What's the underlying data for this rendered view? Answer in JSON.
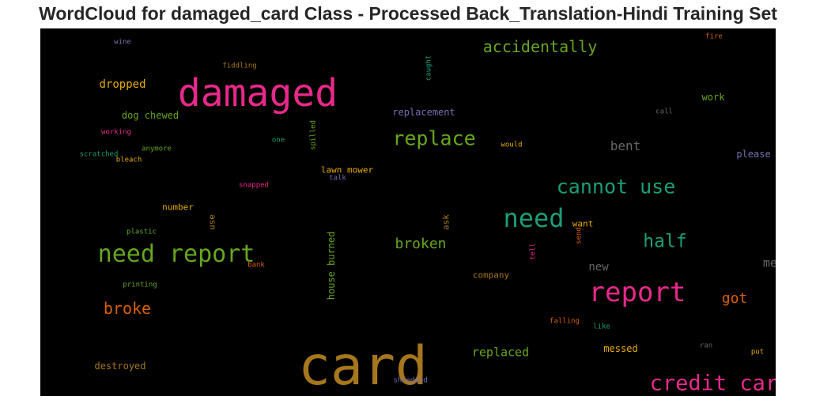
{
  "title": "WordCloud for damaged_card Class - Processed Back_Translation-Hindi Training Set",
  "words": [
    {
      "text": "card",
      "color": "#a6761d",
      "size": 68,
      "vertical": false
    },
    {
      "text": "damaged",
      "color": "#e7298a",
      "size": 48,
      "vertical": false
    },
    {
      "text": "need report",
      "color": "#66a61e",
      "size": 30,
      "vertical": false
    },
    {
      "text": "report",
      "color": "#e7298a",
      "size": 34,
      "vertical": false
    },
    {
      "text": "need",
      "color": "#1b9e77",
      "size": 32,
      "vertical": false
    },
    {
      "text": "credit card",
      "color": "#e7298a",
      "size": 27,
      "vertical": false
    },
    {
      "text": "cannot use",
      "color": "#1b9e77",
      "size": 25,
      "vertical": false
    },
    {
      "text": "replace",
      "color": "#66a61e",
      "size": 25,
      "vertical": false
    },
    {
      "text": "accidentally",
      "color": "#66a61e",
      "size": 20,
      "vertical": false
    },
    {
      "text": "half",
      "color": "#1b9e77",
      "size": 23,
      "vertical": false
    },
    {
      "text": "broke",
      "color": "#d95f02",
      "size": 20,
      "vertical": false
    },
    {
      "text": "broken",
      "color": "#66a61e",
      "size": 18,
      "vertical": false
    },
    {
      "text": "got",
      "color": "#d95f02",
      "size": 18,
      "vertical": false
    },
    {
      "text": "bent",
      "color": "#666666",
      "size": 16,
      "vertical": false
    },
    {
      "text": "melted",
      "color": "#666666",
      "size": 15,
      "vertical": false
    },
    {
      "text": "replaced",
      "color": "#66a61e",
      "size": 15,
      "vertical": false
    },
    {
      "text": "new",
      "color": "#666666",
      "size": 14,
      "vertical": false
    },
    {
      "text": "dropped",
      "color": "#e6ab02",
      "size": 14,
      "vertical": false
    },
    {
      "text": "dog chewed",
      "color": "#66a61e",
      "size": 12,
      "vertical": false
    },
    {
      "text": "destroyed",
      "color": "#a6761d",
      "size": 12,
      "vertical": false
    },
    {
      "text": "messed",
      "color": "#e6ab02",
      "size": 12,
      "vertical": false
    },
    {
      "text": "house burned",
      "color": "#66a61e",
      "size": 12,
      "vertical": true
    },
    {
      "text": "replacement",
      "color": "#7570b3",
      "size": 12,
      "vertical": false
    },
    {
      "text": "work",
      "color": "#66a61e",
      "size": 12,
      "vertical": false
    },
    {
      "text": "please",
      "color": "#7570b3",
      "size": 12,
      "vertical": false
    },
    {
      "text": "lawn mower",
      "color": "#e6ab02",
      "size": 11,
      "vertical": false
    },
    {
      "text": "number",
      "color": "#e6ab02",
      "size": 11,
      "vertical": false
    },
    {
      "text": "want",
      "color": "#e6ab02",
      "size": 11,
      "vertical": false
    },
    {
      "text": "company",
      "color": "#a6761d",
      "size": 11,
      "vertical": false
    },
    {
      "text": "use",
      "color": "#a6761d",
      "size": 11,
      "vertical": true
    },
    {
      "text": "ask",
      "color": "#a6761d",
      "size": 11,
      "vertical": true
    },
    {
      "text": "wine",
      "color": "#7570b3",
      "size": 9,
      "vertical": false
    },
    {
      "text": "fiddling",
      "color": "#a6761d",
      "size": 9,
      "vertical": false
    },
    {
      "text": "caught",
      "color": "#1b9e77",
      "size": 9,
      "vertical": true
    },
    {
      "text": "fire",
      "color": "#d95f02",
      "size": 9,
      "vertical": false
    },
    {
      "text": "call",
      "color": "#666666",
      "size": 9,
      "vertical": false
    },
    {
      "text": "working",
      "color": "#e7298a",
      "size": 9,
      "vertical": false
    },
    {
      "text": "one",
      "color": "#1b9e77",
      "size": 9,
      "vertical": false
    },
    {
      "text": "spilled",
      "color": "#66a61e",
      "size": 9,
      "vertical": true
    },
    {
      "text": "anymore",
      "color": "#66a61e",
      "size": 9,
      "vertical": false
    },
    {
      "text": "scratched",
      "color": "#1b9e77",
      "size": 9,
      "vertical": false
    },
    {
      "text": "bleach",
      "color": "#e6ab02",
      "size": 9,
      "vertical": false
    },
    {
      "text": "would",
      "color": "#e6ab02",
      "size": 9,
      "vertical": false
    },
    {
      "text": "snapped",
      "color": "#e7298a",
      "size": 9,
      "vertical": false
    },
    {
      "text": "talk",
      "color": "#7570b3",
      "size": 9,
      "vertical": false
    },
    {
      "text": "plastic",
      "color": "#66a61e",
      "size": 9,
      "vertical": false
    },
    {
      "text": "bank",
      "color": "#d95f02",
      "size": 9,
      "vertical": false
    },
    {
      "text": "tell",
      "color": "#e7298a",
      "size": 9,
      "vertical": true
    },
    {
      "text": "send",
      "color": "#d95f02",
      "size": 9,
      "vertical": true
    },
    {
      "text": "printing",
      "color": "#66a61e",
      "size": 9,
      "vertical": false
    },
    {
      "text": "falling",
      "color": "#d95f02",
      "size": 9,
      "vertical": false
    },
    {
      "text": "like",
      "color": "#1b9e77",
      "size": 9,
      "vertical": false
    },
    {
      "text": "ran",
      "color": "#666666",
      "size": 9,
      "vertical": false
    },
    {
      "text": "put",
      "color": "#e6ab02",
      "size": 9,
      "vertical": false
    },
    {
      "text": "shredded",
      "color": "#7570b3",
      "size": 9,
      "vertical": false
    }
  ]
}
